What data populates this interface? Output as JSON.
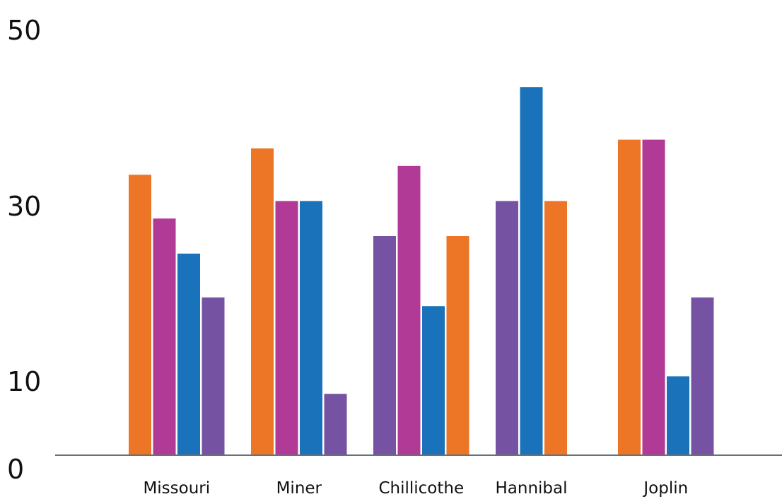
{
  "chart_data": {
    "type": "bar",
    "categories": [
      "Missouri",
      "Miner",
      "Chillicothe",
      "Hannibal",
      "Joplin"
    ],
    "ylim": [
      0,
      50
    ],
    "y_ticks": [
      "0",
      "10",
      "30",
      "50"
    ],
    "y_tick_values": [
      0,
      10,
      30,
      50
    ],
    "grid": false,
    "groups": [
      {
        "category": "Missouri",
        "bars": [
          {
            "value": 32,
            "color": "#ED7626"
          },
          {
            "value": 27,
            "color": "#B03A96"
          },
          {
            "value": 23,
            "color": "#1A73BA"
          },
          {
            "value": 18,
            "color": "#7653A2"
          }
        ]
      },
      {
        "category": "Miner",
        "bars": [
          {
            "value": 35,
            "color": "#ED7626"
          },
          {
            "value": 29,
            "color": "#B03A96"
          },
          {
            "value": 29,
            "color": "#1A73BA"
          },
          {
            "value": 7,
            "color": "#7653A2"
          }
        ]
      },
      {
        "category": "Chillicothe",
        "bars": [
          {
            "value": 25,
            "color": "#7653A2"
          },
          {
            "value": 33,
            "color": "#B03A96"
          },
          {
            "value": 17,
            "color": "#1A73BA"
          },
          {
            "value": 25,
            "color": "#ED7626"
          }
        ]
      },
      {
        "category": "Hannibal",
        "bars": [
          {
            "value": 29,
            "color": "#7653A2"
          },
          {
            "value": 42,
            "color": "#1A73BA"
          },
          {
            "value": 29,
            "color": "#ED7626"
          }
        ]
      },
      {
        "category": "Joplin",
        "bars": [
          {
            "value": 36,
            "color": "#ED7626"
          },
          {
            "value": 36,
            "color": "#B03A96"
          },
          {
            "value": 9,
            "color": "#1A73BA"
          },
          {
            "value": 18,
            "color": "#7653A2"
          }
        ]
      }
    ],
    "colors": {
      "orange": "#ED7626",
      "magenta": "#B03A96",
      "blue": "#1A73BA",
      "purple": "#7653A2",
      "axis": "#6B7078"
    }
  }
}
